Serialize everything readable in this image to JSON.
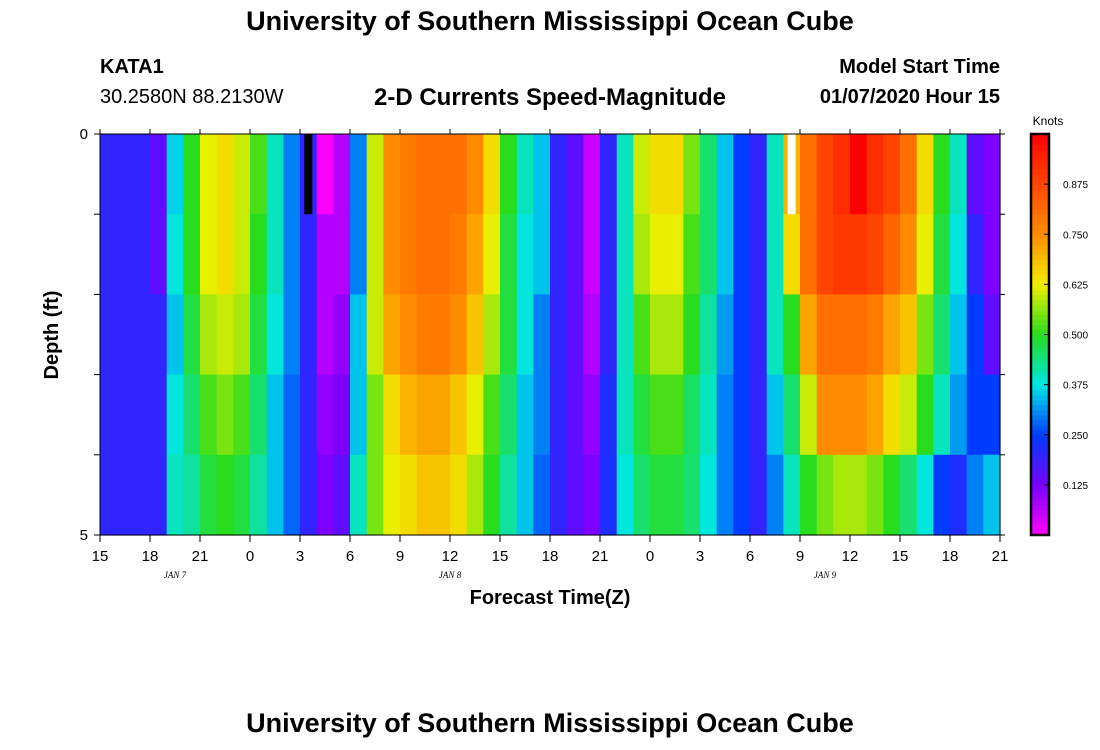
{
  "header": {
    "title": "University of Southern Mississippi Ocean Cube",
    "footer_title": "University of Southern Mississippi Ocean Cube",
    "station_id": "KATA1",
    "coordinates": "30.2580N 88.2130W",
    "model_start_label": "Model Start Time",
    "model_start_value": "01/07/2020 Hour 15"
  },
  "chart_data": {
    "type": "heatmap",
    "title": "2-D Currents Speed-Magnitude",
    "xlabel": "Forecast Time(Z)",
    "ylabel": "Depth (ft)",
    "colorbar_label": "Knots",
    "colorbar_ticks": [
      "0.125",
      "0.250",
      "0.375",
      "0.500",
      "0.625",
      "0.750",
      "0.875"
    ],
    "colorbar_range": [
      0,
      1
    ],
    "ylim": [
      0,
      5
    ],
    "y_tick_labels": [
      "0",
      "5"
    ],
    "y_ticks": [
      0,
      1,
      2,
      3,
      4,
      5
    ],
    "xlim": [
      0,
      54
    ],
    "x_tick_labels": [
      "15",
      "18",
      "21",
      "0",
      "3",
      "6",
      "9",
      "12",
      "15",
      "18",
      "21",
      "0",
      "3",
      "6",
      "9",
      "12",
      "15",
      "18",
      "21"
    ],
    "date_labels": [
      {
        "label": "JAN 7",
        "hour": 4.5
      },
      {
        "label": "JAN 8",
        "hour": 21
      },
      {
        "label": "JAN 9",
        "hour": 43.5
      }
    ],
    "depth_rows": [
      0,
      1,
      2,
      3,
      4,
      5
    ],
    "time_step_hours": 1,
    "values": [
      [
        0.2,
        0.2,
        0.2,
        0.15,
        0.36,
        0.5,
        0.62,
        0.65,
        0.6,
        0.52,
        0.4,
        0.3,
        0.2,
        0.0,
        0.07,
        0.3,
        0.6,
        0.75,
        0.78,
        0.8,
        0.8,
        0.8,
        0.75,
        0.65,
        0.5,
        0.4,
        0.35,
        0.2,
        0.15,
        0.05,
        0.2,
        0.4,
        0.6,
        0.65,
        0.65,
        0.55,
        0.45,
        0.35,
        0.25,
        0.2,
        0.4,
        0.7,
        0.8,
        0.88,
        0.92,
        1.0,
        0.92,
        0.88,
        0.8,
        0.65,
        0.5,
        0.4,
        0.15,
        0.12
      ],
      [
        0.2,
        0.2,
        0.2,
        0.15,
        0.38,
        0.5,
        0.62,
        0.65,
        0.6,
        0.5,
        0.4,
        0.3,
        0.2,
        0.07,
        0.07,
        0.3,
        0.6,
        0.75,
        0.78,
        0.8,
        0.8,
        0.78,
        0.72,
        0.62,
        0.48,
        0.38,
        0.35,
        0.2,
        0.15,
        0.05,
        0.2,
        0.4,
        0.58,
        0.62,
        0.62,
        0.52,
        0.45,
        0.35,
        0.25,
        0.2,
        0.4,
        0.65,
        0.8,
        0.88,
        0.9,
        0.9,
        0.88,
        0.82,
        0.75,
        0.62,
        0.48,
        0.38,
        0.2,
        0.12
      ],
      [
        0.2,
        0.2,
        0.2,
        0.2,
        0.35,
        0.48,
        0.58,
        0.6,
        0.58,
        0.48,
        0.38,
        0.3,
        0.2,
        0.07,
        0.1,
        0.35,
        0.6,
        0.72,
        0.75,
        0.78,
        0.78,
        0.75,
        0.68,
        0.58,
        0.48,
        0.38,
        0.3,
        0.2,
        0.15,
        0.07,
        0.2,
        0.4,
        0.52,
        0.58,
        0.58,
        0.5,
        0.42,
        0.32,
        0.25,
        0.2,
        0.4,
        0.5,
        0.72,
        0.8,
        0.8,
        0.8,
        0.78,
        0.72,
        0.68,
        0.55,
        0.45,
        0.35,
        0.25,
        0.15
      ],
      [
        0.2,
        0.2,
        0.2,
        0.2,
        0.38,
        0.45,
        0.52,
        0.55,
        0.52,
        0.45,
        0.35,
        0.28,
        0.2,
        0.1,
        0.12,
        0.35,
        0.55,
        0.65,
        0.7,
        0.72,
        0.72,
        0.68,
        0.62,
        0.52,
        0.45,
        0.35,
        0.3,
        0.2,
        0.15,
        0.1,
        0.22,
        0.4,
        0.48,
        0.52,
        0.52,
        0.46,
        0.4,
        0.3,
        0.25,
        0.2,
        0.35,
        0.45,
        0.6,
        0.75,
        0.75,
        0.75,
        0.72,
        0.65,
        0.6,
        0.5,
        0.4,
        0.32,
        0.25,
        0.25
      ],
      [
        0.2,
        0.2,
        0.2,
        0.2,
        0.4,
        0.42,
        0.48,
        0.5,
        0.48,
        0.42,
        0.35,
        0.28,
        0.2,
        0.12,
        0.15,
        0.4,
        0.55,
        0.62,
        0.65,
        0.68,
        0.68,
        0.65,
        0.58,
        0.5,
        0.42,
        0.35,
        0.28,
        0.2,
        0.15,
        0.12,
        0.22,
        0.38,
        0.45,
        0.48,
        0.48,
        0.45,
        0.38,
        0.3,
        0.25,
        0.2,
        0.3,
        0.4,
        0.5,
        0.55,
        0.58,
        0.58,
        0.55,
        0.5,
        0.45,
        0.38,
        0.25,
        0.22,
        0.3,
        0.35
      ]
    ],
    "missing_cells": [
      {
        "hour": 12,
        "depth_row": 0,
        "color": "#000000"
      },
      {
        "hour": 41,
        "depth_row": 0,
        "color": "#ffffff"
      }
    ]
  }
}
